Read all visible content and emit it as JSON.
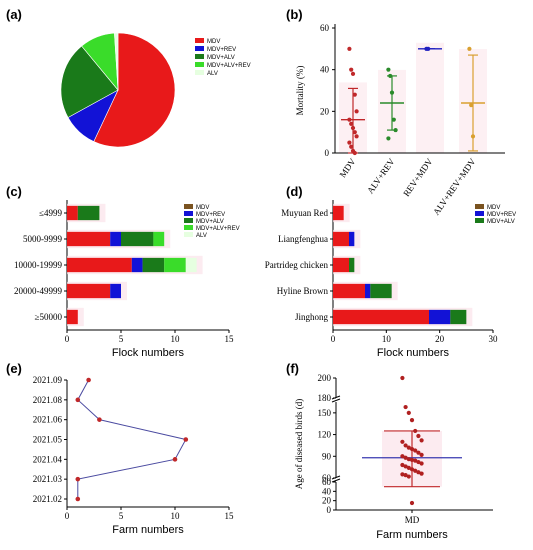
{
  "colors": {
    "MDV": "#e8191a",
    "MDV+REV": "#1212d6",
    "MDV+ALV": "#1a7a1a",
    "MDV+ALV+REV": "#3adc2a",
    "ALV": "#e6ffe0",
    "brown": "#7a5320",
    "panel_e_line": "#4a4aa0",
    "panel_e_point": "#c0282a",
    "pinkbg": "#fbe3ea"
  },
  "chart_data": [
    {
      "panel": "(a)",
      "type": "pie",
      "labels": [
        "MDV",
        "MDV+REV",
        "MDV+ALV",
        "MDV+ALV+REV",
        "ALV"
      ],
      "values": [
        57,
        10,
        22,
        10,
        1
      ]
    },
    {
      "panel": "(b)",
      "type": "scatter",
      "ylabel": "Mortality (%)",
      "ylim": [
        0,
        60
      ],
      "yticks": [
        0,
        20,
        40,
        60
      ],
      "categories": [
        "MDV",
        "ALV+REV",
        "REV+MDV",
        "ALV+REV+MDV"
      ],
      "groups": [
        {
          "category": "MDV",
          "color": "#c0282a",
          "mean": 16,
          "sd_low": 0,
          "sd_high": 31,
          "points": [
            50,
            40,
            38,
            28,
            20,
            16,
            14,
            12,
            10,
            8,
            5,
            3,
            1,
            0
          ]
        },
        {
          "category": "ALV+REV",
          "color": "#2a8a2a",
          "mean": 24,
          "sd_low": 11,
          "sd_high": 37,
          "points": [
            40,
            37,
            29,
            16,
            11,
            7
          ]
        },
        {
          "category": "REV+MDV",
          "color": "#2020c0",
          "mean": 50,
          "sd_low": 50,
          "sd_high": 50,
          "points": [
            50,
            50
          ]
        },
        {
          "category": "ALV+REV+MDV",
          "color": "#d9a030",
          "mean": 24,
          "sd_low": 1,
          "sd_high": 47,
          "points": [
            50,
            23,
            8
          ]
        }
      ]
    },
    {
      "panel": "(c)",
      "type": "bar",
      "orientation": "horizontal",
      "stacked": true,
      "xlabel": "Flock numbers",
      "xlim": [
        0,
        15
      ],
      "xticks": [
        0,
        5,
        10,
        15
      ],
      "categories": [
        "≤4999",
        "5000-9999",
        "10000-19999",
        "20000-49999",
        "≥50000"
      ],
      "legend": [
        "MDV",
        "MDV+REV",
        "MDV+ALV",
        "MDV+ALV+REV",
        "ALV"
      ],
      "series": [
        {
          "name": "MDV",
          "values": [
            1,
            4,
            6,
            4,
            1
          ]
        },
        {
          "name": "MDV+REV",
          "values": [
            0,
            1,
            1,
            1,
            0
          ]
        },
        {
          "name": "MDV+ALV",
          "values": [
            2,
            3,
            2,
            0,
            0
          ]
        },
        {
          "name": "MDV+ALV+REV",
          "values": [
            0,
            1,
            2,
            0,
            0
          ]
        },
        {
          "name": "ALV",
          "values": [
            0,
            0,
            1,
            0,
            0
          ]
        }
      ]
    },
    {
      "panel": "(d)",
      "type": "bar",
      "orientation": "horizontal",
      "stacked": true,
      "xlabel": "Flock numbers",
      "xlim": [
        0,
        30
      ],
      "xticks": [
        0,
        10,
        20,
        30
      ],
      "categories": [
        "Muyuan Red",
        "Liangfenghua",
        "Partrideg chicken",
        "Hyline Brown",
        "Jinghong"
      ],
      "legend": [
        "MDV",
        "MDV+REV",
        "MDV+ALV"
      ],
      "series": [
        {
          "name": "MDV",
          "values": [
            2,
            3,
            3,
            6,
            18
          ]
        },
        {
          "name": "MDV+REV",
          "values": [
            0,
            1,
            0,
            1,
            4
          ]
        },
        {
          "name": "MDV+ALV",
          "values": [
            0,
            0,
            1,
            4,
            3
          ]
        }
      ]
    },
    {
      "panel": "(e)",
      "type": "line",
      "xlabel": "Farm numbers",
      "xlim": [
        0,
        15
      ],
      "xticks": [
        0,
        5,
        10,
        15
      ],
      "y": [
        "2021.02",
        "2021.03",
        "2021.04",
        "2021.05",
        "2021.06",
        "2021.08",
        "2021.09"
      ],
      "x": [
        1,
        1,
        10,
        11,
        3,
        1,
        2
      ]
    },
    {
      "panel": "(f)",
      "type": "scatter",
      "xlabel": "Farm numbers",
      "ylabel": "Age of diseased birds (d)",
      "category": "MD",
      "yticks_upper": [
        180,
        200
      ],
      "yticks_mid": [
        60,
        90,
        120,
        150
      ],
      "yticks_lower": [
        0,
        20,
        40,
        60
      ],
      "mean": 88,
      "sd_low": 50,
      "sd_high": 125,
      "points": [
        200,
        158,
        150,
        140,
        125,
        118,
        112,
        110,
        105,
        102,
        100,
        98,
        95,
        92,
        90,
        88,
        86,
        85,
        84,
        82,
        80,
        78,
        76,
        74,
        72,
        70,
        68,
        66,
        65,
        64,
        62,
        15
      ]
    }
  ],
  "labels": {
    "a": "(a)",
    "b": "(b)",
    "c": "(c)",
    "d": "(d)",
    "e": "(e)",
    "f": "(f)"
  }
}
